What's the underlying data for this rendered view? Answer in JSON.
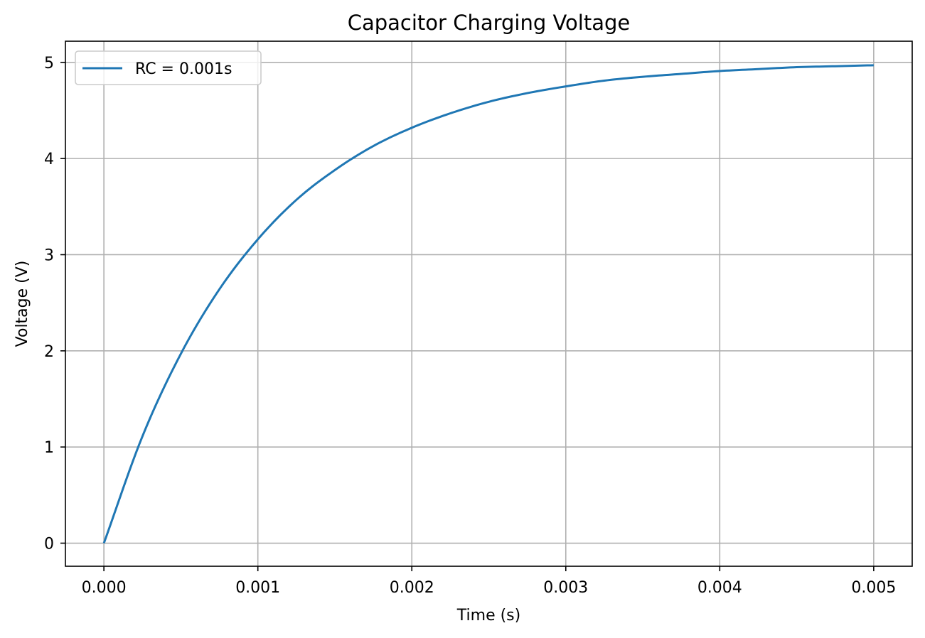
{
  "chart_data": {
    "type": "line",
    "title": "Capacitor Charging Voltage",
    "xlabel": "Time (s)",
    "ylabel": "Voltage (V)",
    "xlim": [
      -0.00025,
      0.00525
    ],
    "ylim": [
      -0.24,
      5.22
    ],
    "xticks": [
      0.0,
      0.001,
      0.002,
      0.003,
      0.004,
      0.005
    ],
    "xtick_labels": [
      "0.000",
      "0.001",
      "0.002",
      "0.003",
      "0.004",
      "0.005"
    ],
    "yticks": [
      0,
      1,
      2,
      3,
      4,
      5
    ],
    "ytick_labels": [
      "0",
      "1",
      "2",
      "3",
      "4",
      "5"
    ],
    "grid": true,
    "legend_position": "top-left",
    "series": [
      {
        "name": "RC = 0.001s",
        "color": "#1f77b4",
        "x": [
          0.0,
          0.00025,
          0.0005,
          0.00075,
          0.001,
          0.00125,
          0.0015,
          0.00175,
          0.002,
          0.00225,
          0.0025,
          0.00275,
          0.003,
          0.00325,
          0.0035,
          0.00375,
          0.004,
          0.00425,
          0.0045,
          0.00475,
          0.005
        ],
        "y": [
          0.0,
          1.11,
          1.97,
          2.64,
          3.16,
          3.57,
          3.88,
          4.13,
          4.32,
          4.47,
          4.59,
          4.68,
          4.75,
          4.81,
          4.85,
          4.88,
          4.91,
          4.93,
          4.95,
          4.96,
          4.97
        ]
      }
    ]
  }
}
